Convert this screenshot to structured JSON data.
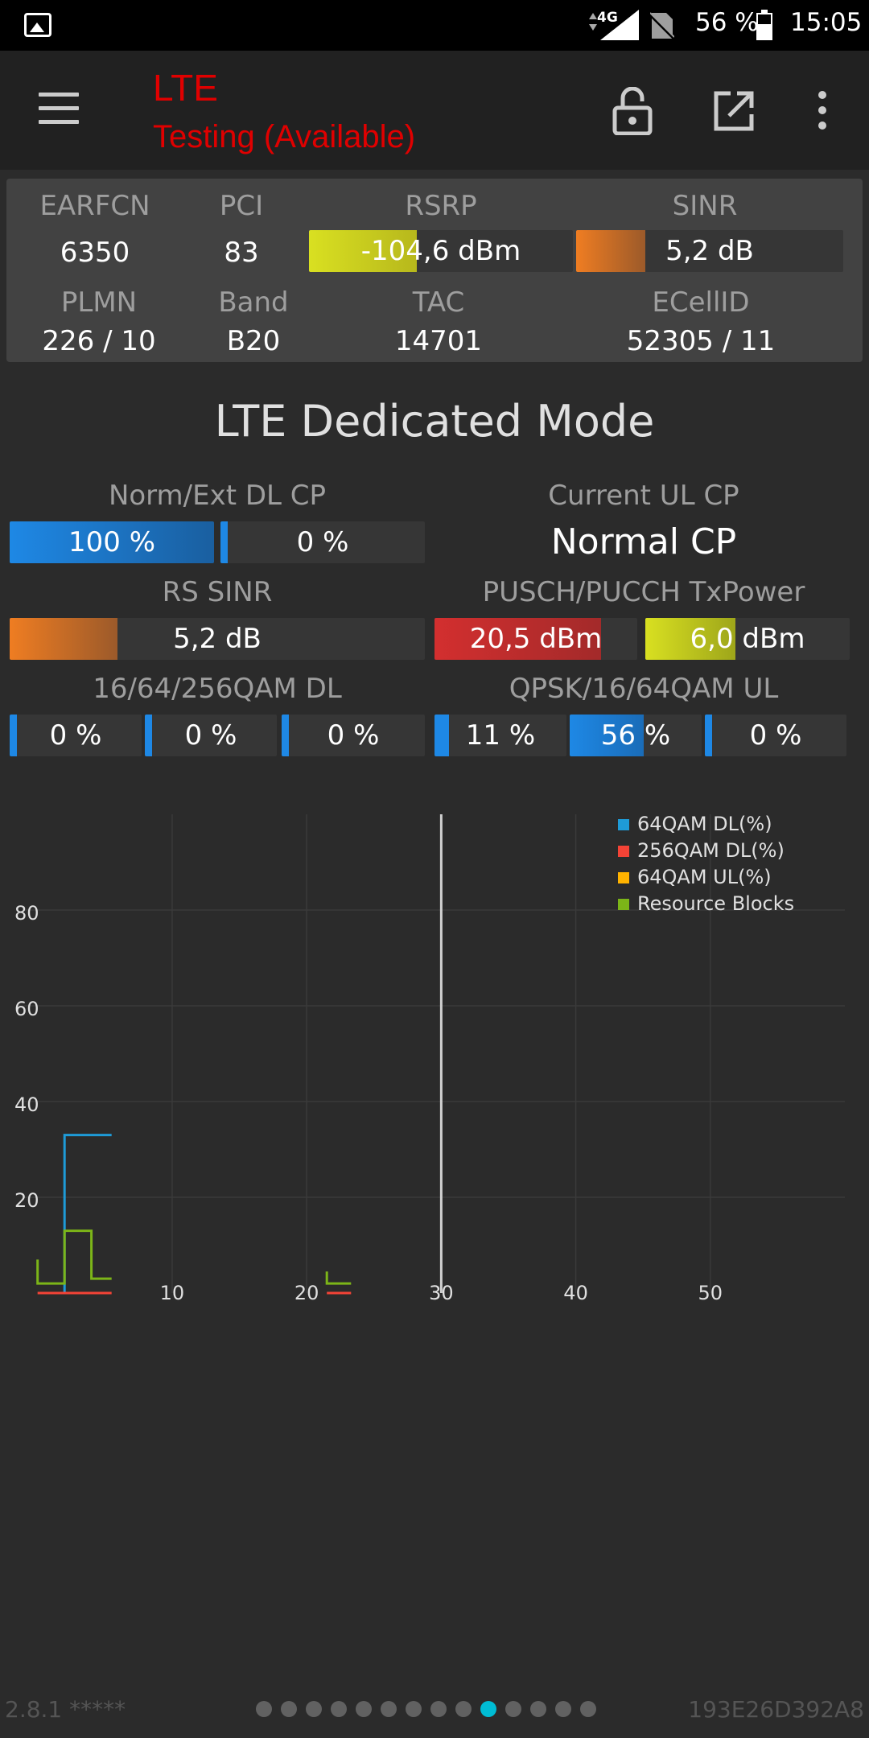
{
  "status_bar": {
    "network": "4G",
    "battery": "56 %",
    "time": "15:05",
    "icons": [
      "gallery-icon",
      "signal-icon",
      "no-sim-icon",
      "battery-icon"
    ]
  },
  "app_bar": {
    "title": "LTE",
    "subtitle": "Testing (Available)",
    "icons": [
      "menu-icon",
      "lock-icon",
      "open-external-icon",
      "more-vert-icon"
    ],
    "title_color": "#e00000"
  },
  "info": {
    "earfcn_label": "EARFCN",
    "earfcn": "6350",
    "pci_label": "PCI",
    "pci": "83",
    "rsrp_label": "RSRP",
    "rsrp": "-104,6 dBm",
    "rsrp_fill": 0.41,
    "sinr_label": "SINR",
    "sinr": "5,2 dB",
    "sinr_fill": 0.26,
    "plmn_label": "PLMN",
    "plmn": "226 / 10",
    "band_label": "Band",
    "band": "B20",
    "tac_label": "TAC",
    "tac": "14701",
    "ecellid_label": "ECellID",
    "ecellid": "52305 / 11"
  },
  "mode_title": "LTE Dedicated Mode",
  "metrics": {
    "cp_dl_label": "Norm/Ext DL CP",
    "cp_dl_norm": "100 %",
    "cp_dl_norm_fill": 1.0,
    "cp_dl_ext": "0 %",
    "cp_dl_ext_fill": 0.0,
    "cp_ul_label": "Current UL CP",
    "cp_ul": "Normal CP",
    "rs_sinr_label": "RS SINR",
    "rs_sinr": "5,2 dB",
    "rs_sinr_fill": 0.26,
    "txpower_label": "PUSCH/PUCCH TxPower",
    "pusch_power": "20,5 dBm",
    "pusch_fill": 0.82,
    "pucch_power": "6,0 dBm",
    "pucch_fill": 0.44,
    "qam_dl_label": "16/64/256QAM DL",
    "qam_dl": [
      "0 %",
      "0 %",
      "0 %"
    ],
    "qam_dl_fill": [
      0,
      0,
      0
    ],
    "qam_ul_label": "QPSK/16/64QAM UL",
    "qam_ul": [
      "11 %",
      "56 %",
      "0 %"
    ],
    "qam_ul_fill": [
      0.11,
      0.56,
      0
    ]
  },
  "chart_data": {
    "type": "line",
    "x_ticks": [
      "10",
      "20",
      "30",
      "40",
      "50"
    ],
    "y_ticks": [
      "20",
      "40",
      "60",
      "80"
    ],
    "xlim": [
      -1,
      60
    ],
    "ylim": [
      0,
      100
    ],
    "grid": true,
    "legend_position": "top-right",
    "cursor_x": 30,
    "series": [
      {
        "name": "64QAM DL(%)",
        "color": "#1e9bd7",
        "points": [
          [
            2,
            0
          ],
          [
            2,
            33
          ],
          [
            5.5,
            33
          ]
        ]
      },
      {
        "name": "256QAM DL(%)",
        "color": "#f44336",
        "points": [
          [
            0,
            0
          ],
          [
            5.5,
            0
          ],
          [
            null,
            null
          ],
          [
            21.5,
            0
          ],
          [
            23.3,
            0
          ]
        ]
      },
      {
        "name": "64QAM UL(%)",
        "color": "#ffb300",
        "points": []
      },
      {
        "name": "Resource Blocks",
        "color": "#7cb518",
        "points": [
          [
            0,
            7
          ],
          [
            0,
            2
          ],
          [
            2,
            2
          ],
          [
            2,
            13
          ],
          [
            4,
            13
          ],
          [
            4,
            3
          ],
          [
            5.5,
            3
          ],
          [
            null,
            null
          ],
          [
            21.5,
            4.5
          ],
          [
            21.5,
            2
          ],
          [
            23.3,
            2
          ]
        ]
      }
    ]
  },
  "footer": {
    "version": "2.8.1 *****",
    "device_id": "193E26D392A8",
    "page_count": 14,
    "active_page": 10
  }
}
